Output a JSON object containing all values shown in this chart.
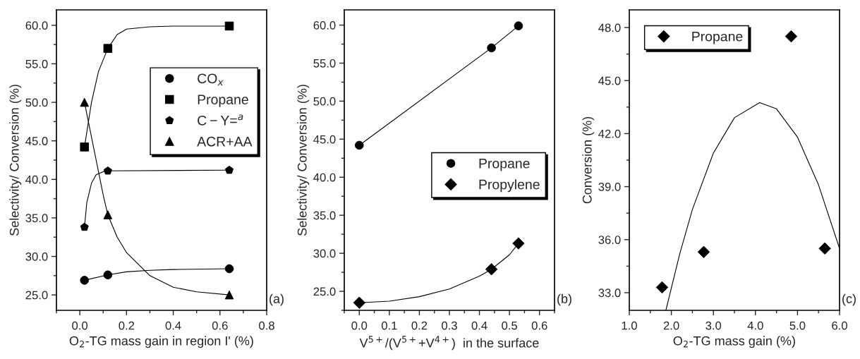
{
  "chart_data": [
    {
      "type": "scatter",
      "xlabel": "O$_{2}$-TG mass gain in region I' (%)",
      "ylabel": "Selectivity/ Conversion (%)",
      "xlim": [
        -0.1,
        0.8
      ],
      "xticks": [
        {
          "value": 0.0,
          "label": "0.0"
        },
        {
          "value": 0.2,
          "label": "0.2"
        },
        {
          "value": 0.4,
          "label": "0.4"
        },
        {
          "value": 0.6,
          "label": "0.6"
        },
        {
          "value": 0.8,
          "label": "0.8"
        }
      ],
      "ylim": [
        23,
        62
      ],
      "yticks": [
        {
          "value": 25,
          "label": "25.0"
        },
        {
          "value": 30,
          "label": "30.0"
        },
        {
          "value": 35,
          "label": "35.0"
        },
        {
          "value": 40,
          "label": "40.0"
        },
        {
          "value": 45,
          "label": "45.0"
        },
        {
          "value": 50,
          "label": "50.0"
        },
        {
          "value": 55,
          "label": "55.0"
        },
        {
          "value": 60,
          "label": "60.0"
        }
      ],
      "grid": false,
      "legend": "upper right",
      "annotations": [
        "(a)"
      ],
      "series": [
        {
          "name": "CO$_{x}$",
          "color": "#000000",
          "marker": "circle",
          "x": [
            0.02,
            0.12,
            0.64
          ],
          "values": [
            26.9,
            27.6,
            28.4
          ]
        },
        {
          "name": "Propane",
          "color": "#000000",
          "marker": "square",
          "x": [
            0.02,
            0.12,
            0.64
          ],
          "values": [
            44.2,
            57.0,
            59.9
          ]
        },
        {
          "name": "C − Y=$^{a}$",
          "color": "#000000",
          "x": [
            0.02,
            0.12,
            0.64
          ],
          "values": [
            33.8,
            41.1,
            41.2
          ]
        },
        {
          "name": "ACR+AA",
          "color": "#000000",
          "marker": "triangle",
          "x": [
            0.02,
            0.12,
            0.64
          ],
          "values": [
            50.0,
            35.4,
            25.0
          ]
        },
        {
          "type": "line",
          "color": "#000000",
          "x": [
            0.02,
            0.12,
            0.2,
            0.3,
            0.4,
            0.64
          ],
          "values": [
            26.9,
            27.6,
            28.0,
            28.2,
            28.3,
            28.4
          ]
        },
        {
          "type": "line",
          "color": "#000000",
          "x": [
            0.02,
            0.05,
            0.08,
            0.12,
            0.16,
            0.2,
            0.3,
            0.4,
            0.64
          ],
          "values": [
            44.2,
            50.0,
            54.0,
            57.0,
            58.8,
            59.5,
            59.8,
            59.9,
            59.9
          ]
        },
        {
          "type": "line",
          "color": "#000000",
          "x": [
            0.02,
            0.03,
            0.05,
            0.07,
            0.1,
            0.12,
            0.64
          ],
          "values": [
            33.8,
            37.0,
            39.5,
            40.6,
            41.0,
            41.1,
            41.2
          ]
        },
        {
          "type": "line",
          "color": "#000000",
          "x": [
            0.02,
            0.06,
            0.1,
            0.12,
            0.16,
            0.2,
            0.3,
            0.4,
            0.5,
            0.64
          ],
          "values": [
            50.0,
            44.0,
            38.0,
            35.4,
            32.5,
            30.5,
            27.5,
            26.0,
            25.4,
            25.0
          ]
        }
      ]
    },
    {
      "type": "scatter",
      "xlabel": "V$^{5+}$/(V$^{5+}$+V$^{4+}$)  in the surface",
      "ylabel": "Selectivity/ Conversion (%)",
      "xlim": [
        -0.05,
        0.65
      ],
      "xticks": [
        {
          "value": 0.0,
          "label": "0.0"
        },
        {
          "value": 0.1,
          "label": "0.1"
        },
        {
          "value": 0.2,
          "label": "0.2"
        },
        {
          "value": 0.3,
          "label": "0.3"
        },
        {
          "value": 0.4,
          "label": "0.4"
        },
        {
          "value": 0.5,
          "label": "0.5"
        },
        {
          "value": 0.6,
          "label": "0.6"
        }
      ],
      "ylim": [
        22.5,
        62
      ],
      "yticks": [
        {
          "value": 25,
          "label": "25.0"
        },
        {
          "value": 30,
          "label": "30.0"
        },
        {
          "value": 35,
          "label": "35.0"
        },
        {
          "value": 40,
          "label": "40.0"
        },
        {
          "value": 45,
          "label": "45.0"
        },
        {
          "value": 50,
          "label": "50.0"
        },
        {
          "value": 55,
          "label": "55.0"
        },
        {
          "value": 60,
          "label": "60.0"
        }
      ],
      "grid": false,
      "legend": "right",
      "annotations": [
        "(b)"
      ],
      "series": [
        {
          "name": "Propane",
          "color": "#000000",
          "marker": "circle",
          "x": [
            0.0,
            0.44,
            0.53
          ],
          "values": [
            44.2,
            57.0,
            59.9
          ]
        },
        {
          "name": "Propylene",
          "color": "#000000",
          "marker": "diamond",
          "x": [
            0.0,
            0.44,
            0.53
          ],
          "values": [
            23.5,
            27.9,
            31.3
          ]
        },
        {
          "type": "line",
          "color": "#000000",
          "x": [
            0.0,
            0.44,
            0.53
          ],
          "values": [
            44.2,
            57.0,
            59.9
          ]
        },
        {
          "type": "line",
          "color": "#000000",
          "x": [
            0.0,
            0.1,
            0.2,
            0.3,
            0.4,
            0.44,
            0.5,
            0.53
          ],
          "values": [
            23.5,
            23.7,
            24.3,
            25.3,
            27.0,
            27.9,
            29.8,
            31.3
          ]
        }
      ]
    },
    {
      "type": "scatter",
      "xlabel": "O$_{2}$-TG mass gain (%)",
      "ylabel": "Conversion (%)",
      "xlim": [
        1.0,
        6.0
      ],
      "xticks": [
        {
          "value": 1,
          "label": "1.0"
        },
        {
          "value": 2,
          "label": "2.0"
        },
        {
          "value": 3,
          "label": "3.0"
        },
        {
          "value": 4,
          "label": "4.0"
        },
        {
          "value": 5,
          "label": "5.0"
        },
        {
          "value": 6,
          "label": "6.0"
        }
      ],
      "ylim": [
        32,
        49
      ],
      "yticks": [
        {
          "value": 33,
          "label": "33.0"
        },
        {
          "value": 36,
          "label": "36.0"
        },
        {
          "value": 39,
          "label": "39.0"
        },
        {
          "value": 42,
          "label": "42.0"
        },
        {
          "value": 45,
          "label": "45.0"
        },
        {
          "value": 48,
          "label": "48.0"
        }
      ],
      "grid": false,
      "legend": "top left",
      "annotations": [
        "(c)"
      ],
      "series": [
        {
          "name": "Propane",
          "color": "#000000",
          "marker": "diamond",
          "x": [
            1.78,
            2.77,
            4.85,
            5.65
          ],
          "values": [
            33.3,
            35.3,
            47.5,
            35.5
          ]
        },
        {
          "type": "line",
          "color": "#000000",
          "x": [
            1.87,
            2.2,
            2.5,
            3.0,
            3.5,
            4.1,
            4.5,
            5.0,
            5.5,
            6.0
          ],
          "values": [
            32.0,
            35.2,
            37.7,
            40.9,
            42.9,
            43.75,
            43.4,
            41.8,
            39.1,
            35.5
          ]
        }
      ]
    }
  ]
}
